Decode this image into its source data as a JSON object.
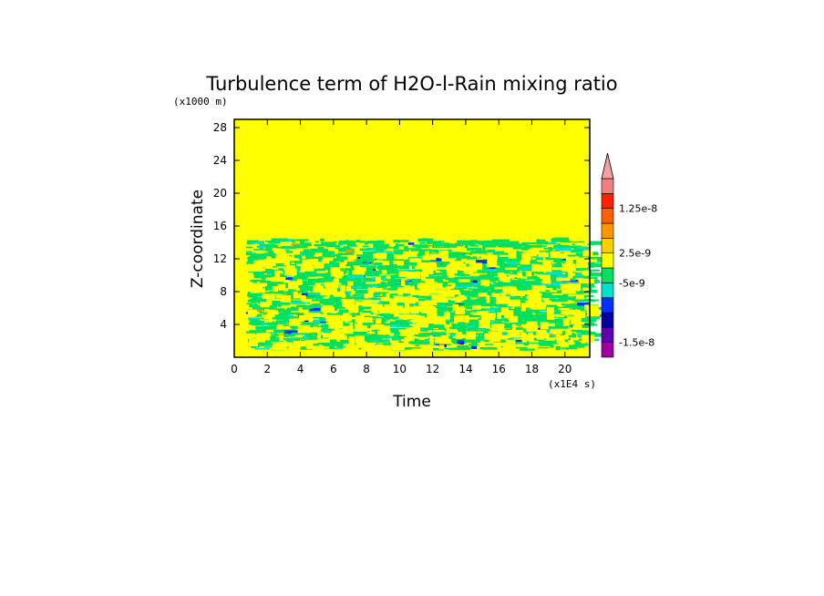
{
  "chart_data": {
    "type": "heatmap",
    "title": "Turbulence term of H2O-l-Rain mixing ratio",
    "xlabel": "Time",
    "ylabel": "Z-coordinate",
    "x_unit": "(x1E4 s)",
    "y_unit": "(x1000 m)",
    "xlim": [
      0,
      21.5
    ],
    "ylim": [
      0,
      29
    ],
    "x_ticks": [
      0,
      2,
      4,
      6,
      8,
      10,
      12,
      14,
      16,
      18,
      20
    ],
    "y_ticks": [
      4,
      8,
      12,
      16,
      20,
      24,
      28
    ],
    "background_level_color": "#ffff00",
    "turbulent_layer_top": 13,
    "colorbar": {
      "colors": [
        "#a000a0",
        "#6000b0",
        "#0000a0",
        "#0030ff",
        "#00e0d0",
        "#00e060",
        "#ffff00",
        "#ffd000",
        "#ff9800",
        "#ff6000",
        "#ff2000",
        "#f08080"
      ],
      "extend_color": "#f4a0a0",
      "labels": [
        {
          "text": "1.25e-8",
          "at_boundary": 10
        },
        {
          "text": "2.5e-9",
          "at_boundary": 7
        },
        {
          "text": "-5e-9",
          "at_boundary": 5
        },
        {
          "text": "-1.5e-8",
          "at_boundary": 1
        }
      ]
    }
  }
}
